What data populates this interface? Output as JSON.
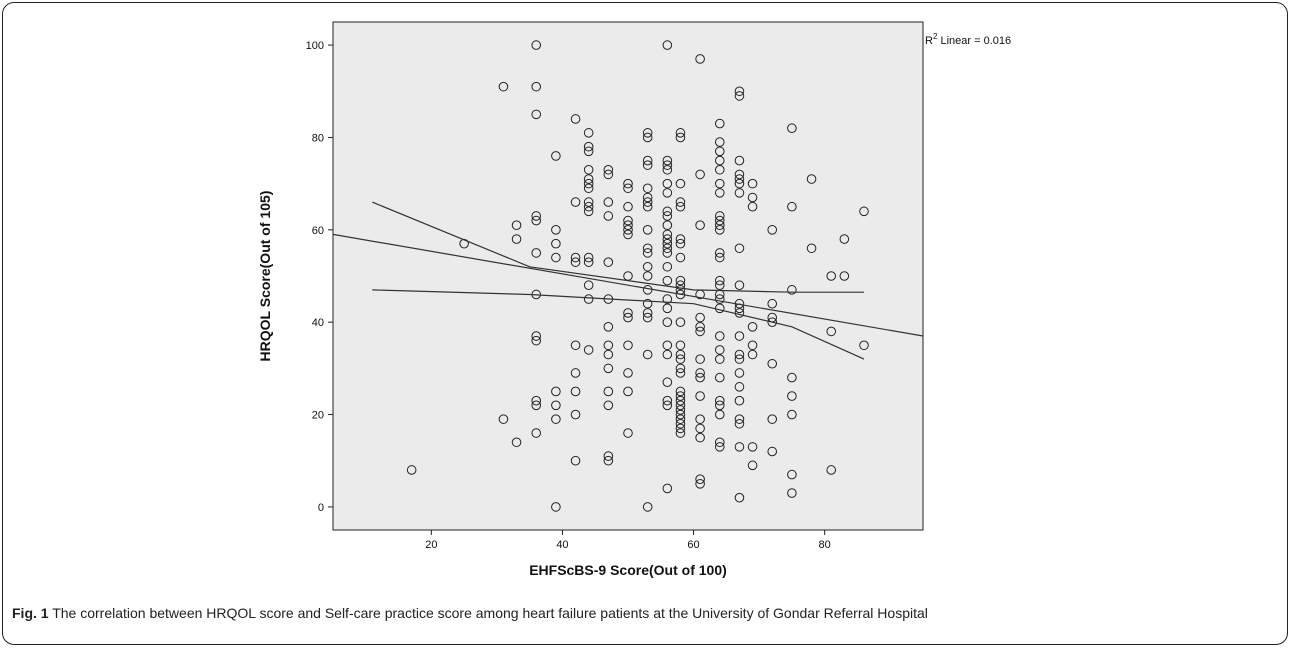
{
  "caption": {
    "label": "Fig. 1",
    "text": " The correlation between HRQOL score and Self-care practice score among heart failure patients at the University of Gondar Referral Hospital"
  },
  "chart_data": {
    "type": "scatter",
    "xlabel": "EHFScBS-9 Score(Out of 100)",
    "ylabel": "HRQOL Score(Out of 105)",
    "xlim": [
      5,
      95
    ],
    "ylim": [
      -5,
      105
    ],
    "xticks": [
      "20",
      "40",
      "60",
      "80"
    ],
    "yticks": [
      "0",
      "20",
      "40",
      "60",
      "80",
      "100"
    ],
    "r2_label": "R",
    "r2_sup": "2",
    "r2_text": " Linear = 0.016",
    "plot_background": "#ebebeb",
    "marker_color": "#222222",
    "fit_line": [
      [
        5,
        59
      ],
      [
        95,
        37
      ]
    ],
    "ci_upper": [
      [
        11,
        66
      ],
      [
        35,
        52
      ],
      [
        60,
        47
      ],
      [
        75,
        46.5
      ],
      [
        86,
        46.5
      ]
    ],
    "ci_lower": [
      [
        11,
        47
      ],
      [
        35,
        46
      ],
      [
        60,
        44
      ],
      [
        75,
        39
      ],
      [
        86,
        32
      ]
    ],
    "points": [
      [
        17,
        8
      ],
      [
        25,
        57
      ],
      [
        31,
        91
      ],
      [
        31,
        19
      ],
      [
        33,
        61
      ],
      [
        33,
        58
      ],
      [
        33,
        14
      ],
      [
        36,
        100
      ],
      [
        36,
        91
      ],
      [
        36,
        85
      ],
      [
        36,
        63
      ],
      [
        36,
        62
      ],
      [
        36,
        55
      ],
      [
        36,
        46
      ],
      [
        36,
        37
      ],
      [
        36,
        36
      ],
      [
        36,
        23
      ],
      [
        36,
        22
      ],
      [
        36,
        16
      ],
      [
        39,
        76
      ],
      [
        39,
        60
      ],
      [
        39,
        57
      ],
      [
        39,
        54
      ],
      [
        39,
        25
      ],
      [
        39,
        22
      ],
      [
        39,
        19
      ],
      [
        39,
        0
      ],
      [
        42,
        84
      ],
      [
        42,
        66
      ],
      [
        42,
        54
      ],
      [
        42,
        53
      ],
      [
        42,
        35
      ],
      [
        42,
        29
      ],
      [
        42,
        25
      ],
      [
        42,
        20
      ],
      [
        42,
        10
      ],
      [
        44,
        81
      ],
      [
        44,
        78
      ],
      [
        44,
        77
      ],
      [
        44,
        73
      ],
      [
        44,
        71
      ],
      [
        44,
        70
      ],
      [
        44,
        69
      ],
      [
        44,
        66
      ],
      [
        44,
        65
      ],
      [
        44,
        64
      ],
      [
        44,
        54
      ],
      [
        44,
        53
      ],
      [
        44,
        48
      ],
      [
        44,
        45
      ],
      [
        44,
        34
      ],
      [
        47,
        73
      ],
      [
        47,
        72
      ],
      [
        47,
        66
      ],
      [
        47,
        63
      ],
      [
        47,
        53
      ],
      [
        47,
        45
      ],
      [
        47,
        39
      ],
      [
        47,
        35
      ],
      [
        47,
        33
      ],
      [
        47,
        30
      ],
      [
        47,
        25
      ],
      [
        47,
        22
      ],
      [
        47,
        11
      ],
      [
        47,
        10
      ],
      [
        50,
        70
      ],
      [
        50,
        69
      ],
      [
        50,
        65
      ],
      [
        50,
        62
      ],
      [
        50,
        61
      ],
      [
        50,
        60
      ],
      [
        50,
        59
      ],
      [
        50,
        50
      ],
      [
        50,
        42
      ],
      [
        50,
        41
      ],
      [
        50,
        35
      ],
      [
        50,
        29
      ],
      [
        50,
        25
      ],
      [
        50,
        16
      ],
      [
        53,
        81
      ],
      [
        53,
        80
      ],
      [
        53,
        75
      ],
      [
        53,
        74
      ],
      [
        53,
        69
      ],
      [
        53,
        67
      ],
      [
        53,
        66
      ],
      [
        53,
        65
      ],
      [
        53,
        60
      ],
      [
        53,
        56
      ],
      [
        53,
        55
      ],
      [
        53,
        52
      ],
      [
        53,
        50
      ],
      [
        53,
        47
      ],
      [
        53,
        44
      ],
      [
        53,
        42
      ],
      [
        53,
        41
      ],
      [
        53,
        33
      ],
      [
        53,
        0
      ],
      [
        56,
        100
      ],
      [
        56,
        75
      ],
      [
        56,
        74
      ],
      [
        56,
        73
      ],
      [
        56,
        70
      ],
      [
        56,
        68
      ],
      [
        56,
        64
      ],
      [
        56,
        63
      ],
      [
        56,
        61
      ],
      [
        56,
        59
      ],
      [
        56,
        58
      ],
      [
        56,
        57
      ],
      [
        56,
        56
      ],
      [
        56,
        55
      ],
      [
        56,
        52
      ],
      [
        56,
        49
      ],
      [
        56,
        45
      ],
      [
        56,
        43
      ],
      [
        56,
        40
      ],
      [
        56,
        35
      ],
      [
        56,
        33
      ],
      [
        56,
        27
      ],
      [
        56,
        23
      ],
      [
        56,
        22
      ],
      [
        56,
        4
      ],
      [
        58,
        81
      ],
      [
        58,
        80
      ],
      [
        58,
        70
      ],
      [
        58,
        66
      ],
      [
        58,
        65
      ],
      [
        58,
        58
      ],
      [
        58,
        57
      ],
      [
        58,
        54
      ],
      [
        58,
        49
      ],
      [
        58,
        48
      ],
      [
        58,
        47
      ],
      [
        58,
        46
      ],
      [
        58,
        40
      ],
      [
        58,
        35
      ],
      [
        58,
        33
      ],
      [
        58,
        32
      ],
      [
        58,
        30
      ],
      [
        58,
        29
      ],
      [
        58,
        25
      ],
      [
        58,
        24
      ],
      [
        58,
        23
      ],
      [
        58,
        22
      ],
      [
        58,
        21
      ],
      [
        58,
        20
      ],
      [
        58,
        19
      ],
      [
        58,
        18
      ],
      [
        58,
        17
      ],
      [
        58,
        16
      ],
      [
        61,
        97
      ],
      [
        61,
        72
      ],
      [
        61,
        61
      ],
      [
        61,
        46
      ],
      [
        61,
        41
      ],
      [
        61,
        39
      ],
      [
        61,
        38
      ],
      [
        61,
        32
      ],
      [
        61,
        29
      ],
      [
        61,
        28
      ],
      [
        61,
        24
      ],
      [
        61,
        19
      ],
      [
        61,
        17
      ],
      [
        61,
        15
      ],
      [
        61,
        6
      ],
      [
        61,
        5
      ],
      [
        64,
        83
      ],
      [
        64,
        79
      ],
      [
        64,
        77
      ],
      [
        64,
        75
      ],
      [
        64,
        73
      ],
      [
        64,
        70
      ],
      [
        64,
        68
      ],
      [
        64,
        63
      ],
      [
        64,
        62
      ],
      [
        64,
        61
      ],
      [
        64,
        60
      ],
      [
        64,
        55
      ],
      [
        64,
        54
      ],
      [
        64,
        49
      ],
      [
        64,
        48
      ],
      [
        64,
        46
      ],
      [
        64,
        45
      ],
      [
        64,
        43
      ],
      [
        64,
        37
      ],
      [
        64,
        34
      ],
      [
        64,
        32
      ],
      [
        64,
        28
      ],
      [
        64,
        23
      ],
      [
        64,
        22
      ],
      [
        64,
        20
      ],
      [
        64,
        14
      ],
      [
        64,
        13
      ],
      [
        67,
        90
      ],
      [
        67,
        89
      ],
      [
        67,
        75
      ],
      [
        67,
        72
      ],
      [
        67,
        71
      ],
      [
        67,
        70
      ],
      [
        67,
        68
      ],
      [
        67,
        56
      ],
      [
        67,
        48
      ],
      [
        67,
        44
      ],
      [
        67,
        43
      ],
      [
        67,
        42
      ],
      [
        67,
        37
      ],
      [
        67,
        33
      ],
      [
        67,
        32
      ],
      [
        67,
        29
      ],
      [
        67,
        26
      ],
      [
        67,
        23
      ],
      [
        67,
        19
      ],
      [
        67,
        18
      ],
      [
        67,
        13
      ],
      [
        67,
        2
      ],
      [
        69,
        70
      ],
      [
        69,
        67
      ],
      [
        69,
        65
      ],
      [
        69,
        39
      ],
      [
        69,
        35
      ],
      [
        69,
        33
      ],
      [
        69,
        13
      ],
      [
        69,
        9
      ],
      [
        72,
        60
      ],
      [
        72,
        44
      ],
      [
        72,
        41
      ],
      [
        72,
        40
      ],
      [
        72,
        31
      ],
      [
        72,
        19
      ],
      [
        72,
        12
      ],
      [
        75,
        82
      ],
      [
        75,
        65
      ],
      [
        75,
        47
      ],
      [
        75,
        28
      ],
      [
        75,
        24
      ],
      [
        75,
        20
      ],
      [
        75,
        7
      ],
      [
        75,
        3
      ],
      [
        78,
        71
      ],
      [
        78,
        56
      ],
      [
        81,
        50
      ],
      [
        81,
        38
      ],
      [
        81,
        8
      ],
      [
        83,
        58
      ],
      [
        83,
        50
      ],
      [
        86,
        64
      ],
      [
        86,
        35
      ]
    ]
  }
}
